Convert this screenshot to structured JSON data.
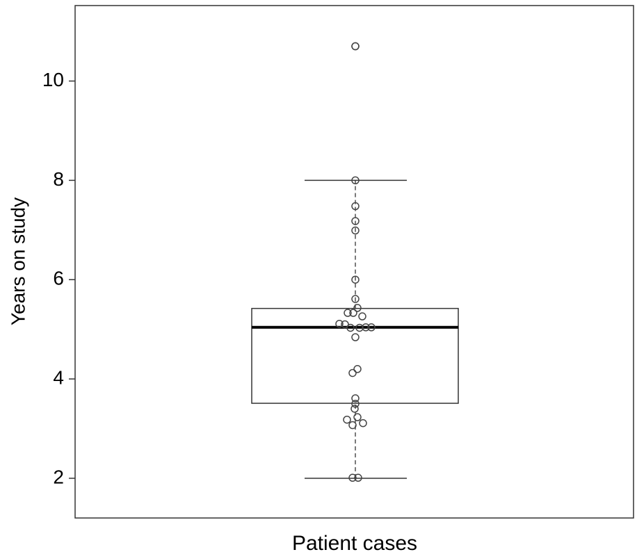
{
  "chart_data": {
    "type": "box",
    "y_label": "Years on study",
    "x_label": "Patient cases",
    "ylim": [
      1.2,
      11.52
    ],
    "yticks": [
      2,
      4,
      6,
      8,
      10
    ],
    "box": {
      "whisker_low": 2.0,
      "q1": 3.51,
      "median": 5.04,
      "q3": 5.42,
      "whisker_high": 8.0
    },
    "outliers": [
      10.7
    ],
    "points": [
      10.7,
      8.0,
      7.48,
      7.18,
      6.99,
      6.0,
      5.61,
      5.43,
      5.33,
      5.33,
      5.26,
      5.11,
      5.1,
      5.03,
      5.03,
      5.04,
      5.04,
      4.84,
      4.2,
      4.12,
      3.61,
      3.5,
      3.4,
      3.23,
      3.18,
      3.11,
      3.07,
      2.01,
      2.01
    ]
  }
}
